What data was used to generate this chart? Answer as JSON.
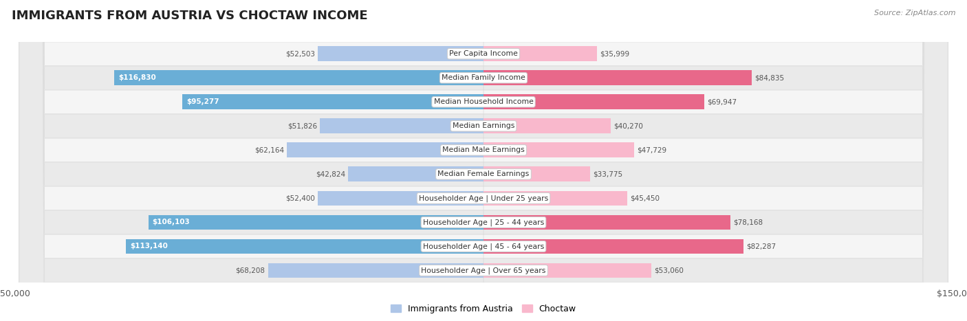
{
  "title": "IMMIGRANTS FROM AUSTRIA VS CHOCTAW INCOME",
  "source": "Source: ZipAtlas.com",
  "categories": [
    "Per Capita Income",
    "Median Family Income",
    "Median Household Income",
    "Median Earnings",
    "Median Male Earnings",
    "Median Female Earnings",
    "Householder Age | Under 25 years",
    "Householder Age | 25 - 44 years",
    "Householder Age | 45 - 64 years",
    "Householder Age | Over 65 years"
  ],
  "austria_values": [
    52503,
    116830,
    95277,
    51826,
    62164,
    42824,
    52400,
    106103,
    113140,
    68208
  ],
  "choctaw_values": [
    35999,
    84835,
    69947,
    40270,
    47729,
    33775,
    45450,
    78168,
    82287,
    53060
  ],
  "austria_labels": [
    "$52,503",
    "$116,830",
    "$95,277",
    "$51,826",
    "$62,164",
    "$42,824",
    "$52,400",
    "$106,103",
    "$113,140",
    "$68,208"
  ],
  "choctaw_labels": [
    "$35,999",
    "$84,835",
    "$69,947",
    "$40,270",
    "$47,729",
    "$33,775",
    "$45,450",
    "$78,168",
    "$82,287",
    "$53,060"
  ],
  "austria_light_color": "#aec6e8",
  "austria_dark_color": "#6aaed6",
  "choctaw_light_color": "#f9b8cc",
  "choctaw_dark_color": "#e8688a",
  "austria_threshold": 80000,
  "choctaw_threshold": 60000,
  "max_value": 150000,
  "background_color": "#ffffff",
  "row_odd_color": "#f7f7f7",
  "row_even_color": "#efefef",
  "label_threshold": 75000,
  "legend_austria": "Immigrants from Austria",
  "legend_choctaw": "Choctaw"
}
